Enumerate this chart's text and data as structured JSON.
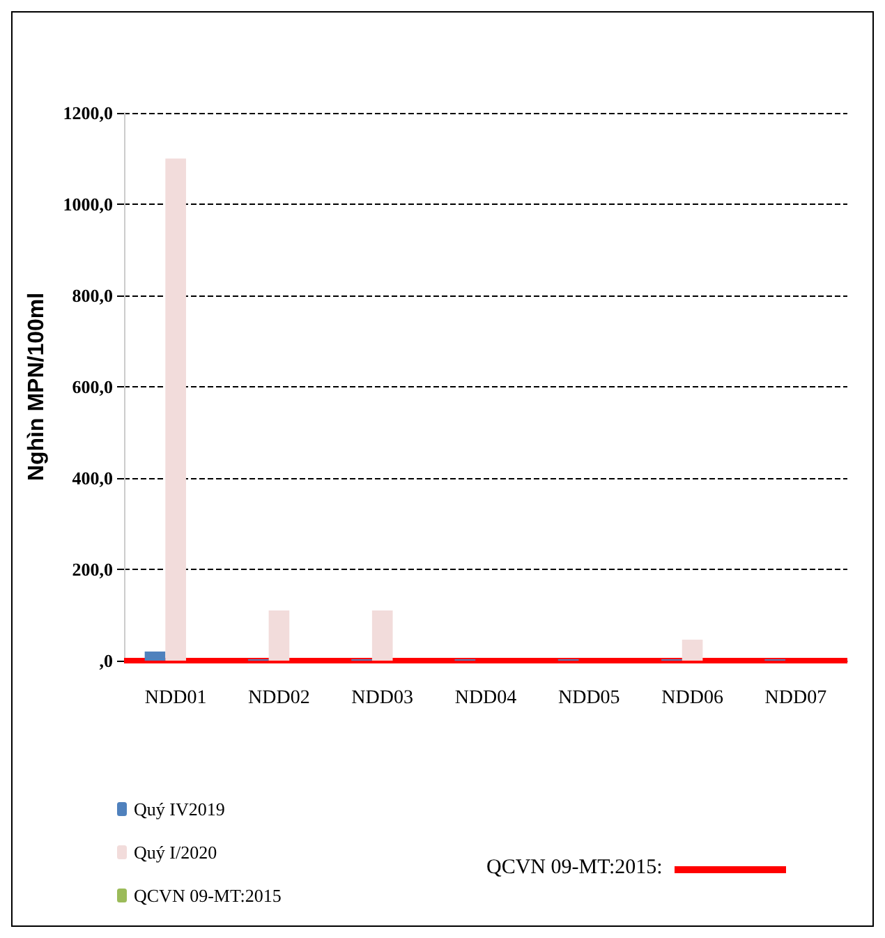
{
  "chart_data": {
    "type": "bar",
    "ylabel": "Nghìn MPN/100ml",
    "categories": [
      "NDD01",
      "NDD02",
      "NDD03",
      "NDD04",
      "NDD05",
      "NDD06",
      "NDD07"
    ],
    "series": [
      {
        "name": "Quý IV2019",
        "color": "#4f81bd",
        "values": [
          20,
          3,
          3,
          3,
          3,
          3,
          3
        ]
      },
      {
        "name": "Quý I/2020",
        "color": "#f2dcdb",
        "values": [
          1100,
          110,
          110,
          null,
          null,
          46,
          null
        ]
      },
      {
        "name": "QCVN 09-MT:2015",
        "color": "#9bbb59",
        "values": [
          null,
          null,
          null,
          null,
          null,
          null,
          null
        ]
      }
    ],
    "ylim": [
      0,
      1200
    ],
    "yticks": [
      {
        "value": 0,
        "label": ",0"
      },
      {
        "value": 200,
        "label": "200,0"
      },
      {
        "value": 400,
        "label": "400,0"
      },
      {
        "value": 600,
        "label": "600,0"
      },
      {
        "value": 800,
        "label": "800,0"
      },
      {
        "value": 1000,
        "label": "1000,0"
      },
      {
        "value": 1200,
        "label": "1200,0"
      }
    ],
    "grid": "y",
    "legend": "bottom left",
    "annotations": [
      "QCVN 09-MT:2015:"
    ],
    "ref_lines": [
      {
        "axis": "y",
        "value": 0,
        "color": "#ff0000"
      }
    ]
  }
}
